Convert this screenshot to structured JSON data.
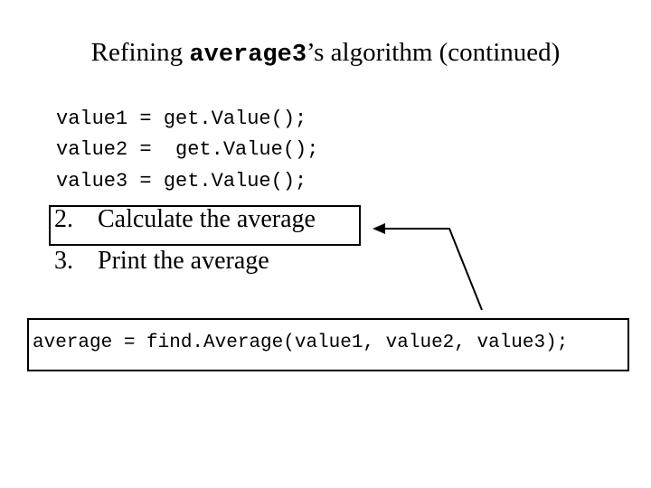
{
  "title": {
    "before": "Refining ",
    "code": "average3",
    "after": "’s algorithm (continued)"
  },
  "code_lines": [
    "value1 = get.Value();",
    "value2 =  get.Value();",
    "value3 = get.Value();"
  ],
  "steps": [
    {
      "number": "2.",
      "text": "Calculate the average"
    },
    {
      "number": "3.",
      "text": "Print the average"
    }
  ],
  "boxed_code": "average = find.Average(value1, value2, value3);"
}
